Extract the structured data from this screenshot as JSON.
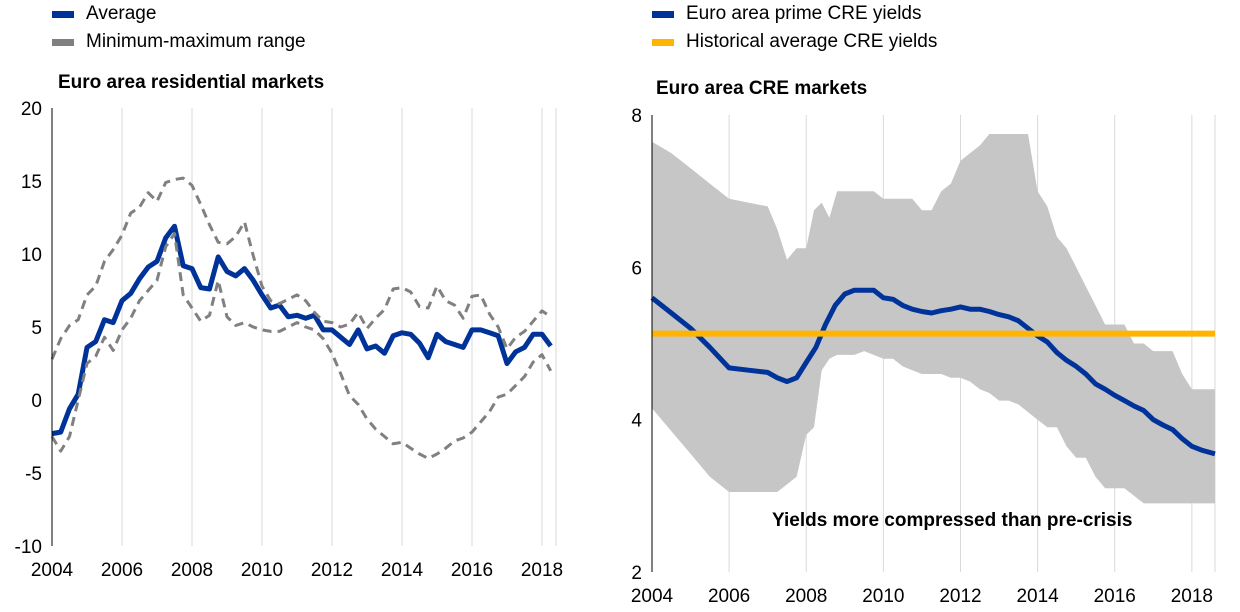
{
  "chart_data": [
    {
      "type": "line",
      "title": "Euro area residential markets",
      "xlabel": "",
      "ylabel": "",
      "xlim": [
        2004,
        2018.4
      ],
      "ylim": [
        -10,
        20
      ],
      "xticks": [
        "2004",
        "2006",
        "2008",
        "2010",
        "2012",
        "2014",
        "2016",
        "2018"
      ],
      "yticks": [
        "-10",
        "-5",
        "0",
        "5",
        "10",
        "15",
        "20"
      ],
      "grid": "vertical",
      "legend": [
        {
          "label": "Average",
          "color": "#003399"
        },
        {
          "label": "Minimum-maximum range",
          "color": "#808080"
        }
      ],
      "series": [
        {
          "name": "Average",
          "color": "#003399",
          "x": [
            2004.0,
            2004.25,
            2004.5,
            2004.75,
            2005.0,
            2005.25,
            2005.5,
            2005.75,
            2006.0,
            2006.25,
            2006.5,
            2006.75,
            2007.0,
            2007.25,
            2007.5,
            2007.75,
            2008.0,
            2008.25,
            2008.5,
            2008.75,
            2009.0,
            2009.25,
            2009.5,
            2009.75,
            2010.0,
            2010.25,
            2010.5,
            2010.75,
            2011.0,
            2011.25,
            2011.5,
            2011.75,
            2012.0,
            2012.25,
            2012.5,
            2012.75,
            2013.0,
            2013.25,
            2013.5,
            2013.75,
            2014.0,
            2014.25,
            2014.5,
            2014.75,
            2015.0,
            2015.25,
            2015.5,
            2015.75,
            2016.0,
            2016.25,
            2016.5,
            2016.75,
            2017.0,
            2017.25,
            2017.5,
            2017.75,
            2018.0,
            2018.25
          ],
          "values": [
            -2.3,
            -2.2,
            -0.6,
            0.4,
            3.6,
            4.0,
            5.5,
            5.3,
            6.8,
            7.3,
            8.3,
            9.1,
            9.5,
            11.1,
            11.9,
            9.2,
            9.0,
            7.7,
            7.6,
            9.8,
            8.8,
            8.5,
            9.0,
            8.2,
            7.2,
            6.3,
            6.5,
            5.7,
            5.8,
            5.6,
            5.8,
            4.8,
            4.8,
            4.3,
            3.8,
            4.8,
            3.5,
            3.7,
            3.2,
            4.4,
            4.6,
            4.5,
            3.9,
            2.9,
            4.5,
            4.0,
            3.8,
            3.6,
            4.8,
            4.8,
            4.6,
            4.4,
            2.5,
            3.3,
            3.6,
            4.5,
            4.5,
            3.7
          ]
        },
        {
          "name": "Maximum",
          "color": "#808080",
          "x": [
            2004.0,
            2004.25,
            2004.5,
            2004.75,
            2005.0,
            2005.25,
            2005.5,
            2005.75,
            2006.0,
            2006.25,
            2006.5,
            2006.75,
            2007.0,
            2007.25,
            2007.5,
            2007.75,
            2008.0,
            2008.25,
            2008.5,
            2008.75,
            2009.0,
            2009.25,
            2009.5,
            2009.75,
            2010.0,
            2010.25,
            2010.5,
            2010.75,
            2011.0,
            2011.25,
            2011.5,
            2011.75,
            2012.0,
            2012.25,
            2012.5,
            2012.75,
            2013.0,
            2013.25,
            2013.5,
            2013.75,
            2014.0,
            2014.25,
            2014.5,
            2014.75,
            2015.0,
            2015.25,
            2015.5,
            2015.75,
            2016.0,
            2016.25,
            2016.5,
            2016.75,
            2017.0,
            2017.25,
            2017.5,
            2017.75,
            2018.0,
            2018.25
          ],
          "values": [
            2.8,
            4.2,
            5.1,
            5.5,
            7.2,
            7.8,
            9.5,
            10.3,
            11.3,
            12.8,
            13.2,
            14.2,
            13.6,
            14.9,
            15.1,
            15.2,
            14.7,
            13.4,
            12.0,
            10.8,
            10.7,
            11.2,
            12.2,
            9.9,
            7.8,
            6.8,
            6.6,
            6.9,
            7.2,
            6.8,
            6.0,
            5.4,
            5.3,
            5.0,
            5.2,
            6.0,
            4.9,
            5.6,
            6.2,
            7.6,
            7.7,
            7.4,
            6.4,
            6.3,
            7.8,
            6.8,
            6.5,
            5.6,
            7.1,
            7.2,
            5.9,
            5.0,
            3.5,
            4.3,
            4.7,
            5.4,
            6.1,
            5.7
          ]
        },
        {
          "name": "Minimum",
          "color": "#808080",
          "x": [
            2004.0,
            2004.25,
            2004.5,
            2004.75,
            2005.0,
            2005.25,
            2005.5,
            2005.75,
            2006.0,
            2006.25,
            2006.5,
            2006.75,
            2007.0,
            2007.25,
            2007.5,
            2007.75,
            2008.0,
            2008.25,
            2008.5,
            2008.75,
            2009.0,
            2009.25,
            2009.5,
            2009.75,
            2010.0,
            2010.25,
            2010.5,
            2010.75,
            2011.0,
            2011.25,
            2011.5,
            2011.75,
            2012.0,
            2012.25,
            2012.5,
            2012.75,
            2013.0,
            2013.25,
            2013.5,
            2013.75,
            2014.0,
            2014.25,
            2014.5,
            2014.75,
            2015.0,
            2015.25,
            2015.5,
            2015.75,
            2016.0,
            2016.25,
            2016.5,
            2016.75,
            2017.0,
            2017.25,
            2017.5,
            2017.75,
            2018.0,
            2018.25
          ],
          "values": [
            -2.5,
            -3.5,
            -2.5,
            0.0,
            2.5,
            3.0,
            4.3,
            3.4,
            4.8,
            5.6,
            6.8,
            7.5,
            8.2,
            10.5,
            11.4,
            7.2,
            6.3,
            5.4,
            5.8,
            8.2,
            5.7,
            5.1,
            5.3,
            5.0,
            4.8,
            4.7,
            4.7,
            5.0,
            5.3,
            5.0,
            4.8,
            4.2,
            3.2,
            1.8,
            0.3,
            -0.3,
            -1.3,
            -2.0,
            -2.5,
            -3.0,
            -2.9,
            -3.3,
            -3.7,
            -4.0,
            -3.7,
            -3.3,
            -2.8,
            -2.6,
            -2.2,
            -1.5,
            -0.8,
            0.2,
            0.4,
            1.0,
            1.6,
            2.6,
            3.1,
            2.0
          ]
        }
      ]
    },
    {
      "type": "area",
      "title": "Euro area CRE markets",
      "xlabel": "",
      "ylabel": "",
      "xlim": [
        2004,
        2018.6
      ],
      "ylim": [
        2,
        8
      ],
      "xticks": [
        "2004",
        "2006",
        "2008",
        "2010",
        "2012",
        "2014",
        "2016",
        "2018"
      ],
      "yticks": [
        "2",
        "4",
        "6",
        "8"
      ],
      "grid": "vertical",
      "annotation": "Yields more compressed than pre-crisis",
      "legend": [
        {
          "label": "Euro area prime CRE yields",
          "color": "#003399"
        },
        {
          "label": "Historical average CRE yields",
          "color": "#FFB400"
        }
      ],
      "range_band": {
        "color": "#c6c6c6",
        "x": [
          2004.0,
          2004.5,
          2005.0,
          2005.5,
          2006.0,
          2006.5,
          2007.0,
          2007.25,
          2007.5,
          2007.75,
          2008.0,
          2008.2,
          2008.4,
          2008.6,
          2008.8,
          2009.0,
          2009.25,
          2009.5,
          2009.75,
          2010.0,
          2010.25,
          2010.5,
          2010.75,
          2011.0,
          2011.25,
          2011.5,
          2011.75,
          2012.0,
          2012.25,
          2012.5,
          2012.75,
          2013.0,
          2013.25,
          2013.5,
          2013.75,
          2014.0,
          2014.25,
          2014.5,
          2014.75,
          2015.0,
          2015.25,
          2015.5,
          2015.75,
          2016.0,
          2016.25,
          2016.5,
          2016.75,
          2017.0,
          2017.25,
          2017.5,
          2017.75,
          2018.0,
          2018.25,
          2018.6
        ],
        "upper": [
          7.65,
          7.5,
          7.3,
          7.1,
          6.9,
          6.85,
          6.8,
          6.5,
          6.1,
          6.25,
          6.25,
          6.75,
          6.85,
          6.65,
          7.0,
          7.0,
          7.0,
          7.0,
          7.0,
          6.9,
          6.9,
          6.9,
          6.9,
          6.75,
          6.75,
          7.0,
          7.1,
          7.4,
          7.5,
          7.6,
          7.75,
          7.75,
          7.75,
          7.75,
          7.75,
          7.0,
          6.8,
          6.4,
          6.25,
          6.0,
          5.75,
          5.5,
          5.25,
          5.25,
          5.25,
          5.0,
          5.0,
          4.9,
          4.9,
          4.9,
          4.6,
          4.4,
          4.4,
          4.4
        ],
        "lower": [
          4.15,
          3.85,
          3.55,
          3.25,
          3.05,
          3.05,
          3.05,
          3.05,
          3.15,
          3.25,
          3.8,
          3.9,
          4.65,
          4.8,
          4.85,
          4.85,
          4.85,
          4.9,
          4.85,
          4.8,
          4.8,
          4.7,
          4.65,
          4.6,
          4.6,
          4.6,
          4.55,
          4.55,
          4.5,
          4.4,
          4.35,
          4.25,
          4.25,
          4.2,
          4.1,
          4.0,
          3.9,
          3.9,
          3.65,
          3.5,
          3.5,
          3.25,
          3.1,
          3.1,
          3.1,
          3.0,
          2.9,
          2.9,
          2.9,
          2.9,
          2.9,
          2.9,
          2.9,
          2.9
        ]
      },
      "series": [
        {
          "name": "Euro area prime CRE yields",
          "color": "#003399",
          "x": [
            2004.0,
            2004.5,
            2005.0,
            2005.5,
            2006.0,
            2006.5,
            2007.0,
            2007.25,
            2007.5,
            2007.75,
            2008.0,
            2008.25,
            2008.5,
            2008.75,
            2009.0,
            2009.25,
            2009.5,
            2009.75,
            2010.0,
            2010.25,
            2010.5,
            2010.75,
            2011.0,
            2011.25,
            2011.5,
            2011.75,
            2012.0,
            2012.25,
            2012.5,
            2012.75,
            2013.0,
            2013.25,
            2013.5,
            2013.75,
            2014.0,
            2014.25,
            2014.5,
            2014.75,
            2015.0,
            2015.25,
            2015.5,
            2015.75,
            2016.0,
            2016.25,
            2016.5,
            2016.75,
            2017.0,
            2017.25,
            2017.5,
            2017.75,
            2018.0,
            2018.25,
            2018.6
          ],
          "values": [
            5.6,
            5.4,
            5.2,
            4.95,
            4.68,
            4.65,
            4.62,
            4.55,
            4.5,
            4.55,
            4.75,
            4.95,
            5.25,
            5.5,
            5.65,
            5.7,
            5.7,
            5.7,
            5.6,
            5.58,
            5.5,
            5.45,
            5.42,
            5.4,
            5.43,
            5.45,
            5.48,
            5.45,
            5.45,
            5.42,
            5.38,
            5.35,
            5.3,
            5.2,
            5.1,
            5.02,
            4.88,
            4.78,
            4.7,
            4.6,
            4.47,
            4.4,
            4.32,
            4.25,
            4.18,
            4.12,
            4.0,
            3.93,
            3.87,
            3.75,
            3.65,
            3.6,
            3.55
          ]
        },
        {
          "name": "Historical average CRE yields",
          "color": "#FFB400",
          "x": [
            2004.0,
            2018.6
          ],
          "values": [
            5.13,
            5.13
          ]
        }
      ]
    }
  ]
}
